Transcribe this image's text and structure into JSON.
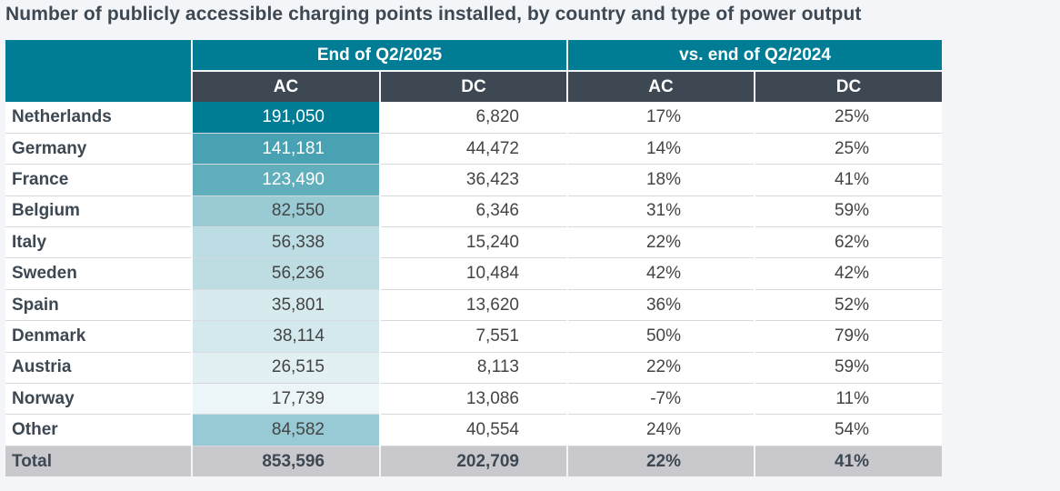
{
  "title": "Number of publicly accessible charging points installed, by country and type of power output",
  "chart_data": {
    "type": "table",
    "title": "Number of publicly accessible charging points installed, by country and type of power output",
    "column_groups": [
      "End of Q2/2025",
      "vs. end of Q2/2024"
    ],
    "sub_columns": [
      "AC",
      "DC",
      "AC",
      "DC"
    ],
    "rows": [
      {
        "country": "Netherlands",
        "ac": "191,050",
        "dc": "6,820",
        "ac_change": "17%",
        "dc_change": "25%",
        "ac_value": 191050
      },
      {
        "country": "Germany",
        "ac": "141,181",
        "dc": "44,472",
        "ac_change": "14%",
        "dc_change": "25%",
        "ac_value": 141181
      },
      {
        "country": "France",
        "ac": "123,490",
        "dc": "36,423",
        "ac_change": "18%",
        "dc_change": "41%",
        "ac_value": 123490
      },
      {
        "country": "Belgium",
        "ac": "82,550",
        "dc": "6,346",
        "ac_change": "31%",
        "dc_change": "59%",
        "ac_value": 82550
      },
      {
        "country": "Italy",
        "ac": "56,338",
        "dc": "15,240",
        "ac_change": "22%",
        "dc_change": "62%",
        "ac_value": 56338
      },
      {
        "country": "Sweden",
        "ac": "56,236",
        "dc": "10,484",
        "ac_change": "42%",
        "dc_change": "42%",
        "ac_value": 56236
      },
      {
        "country": "Spain",
        "ac": "35,801",
        "dc": "13,620",
        "ac_change": "36%",
        "dc_change": "52%",
        "ac_value": 35801
      },
      {
        "country": "Denmark",
        "ac": "38,114",
        "dc": "7,551",
        "ac_change": "50%",
        "dc_change": "79%",
        "ac_value": 38114
      },
      {
        "country": "Austria",
        "ac": "26,515",
        "dc": "8,113",
        "ac_change": "22%",
        "dc_change": "59%",
        "ac_value": 26515
      },
      {
        "country": "Norway",
        "ac": "17,739",
        "dc": "13,086",
        "ac_change": "-7%",
        "dc_change": "11%",
        "ac_value": 17739
      },
      {
        "country": "Other",
        "ac": "84,582",
        "dc": "40,554",
        "ac_change": "24%",
        "dc_change": "54%",
        "ac_value": 84582
      }
    ],
    "total": {
      "country": "Total",
      "ac": "853,596",
      "dc": "202,709",
      "ac_change": "22%",
      "dc_change": "41%"
    },
    "heat_color_scale": {
      "low": "#ffffff",
      "high": "#007d95"
    }
  }
}
